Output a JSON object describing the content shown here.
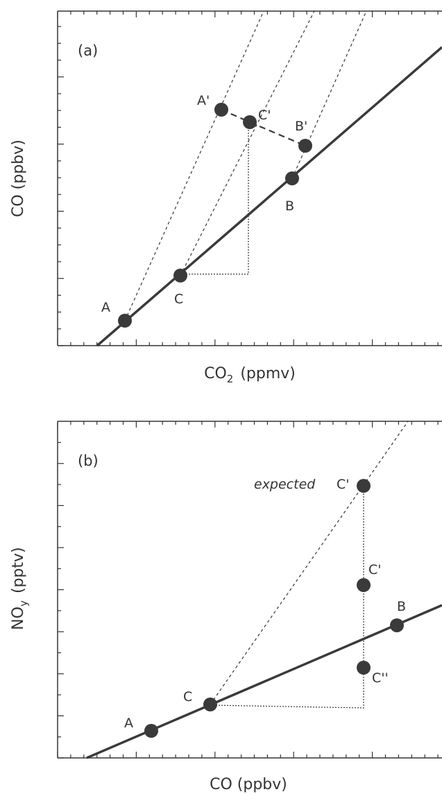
{
  "colors": {
    "ink": "#3a3a3a",
    "frame": "#333333",
    "background": "#ffffff"
  },
  "panel_a": {
    "tag": "(a)",
    "xlabel_main": "CO",
    "xlabel_sub": "2",
    "xlabel_unit": "(ppmv)",
    "ylabel": "CO (ppbv)",
    "points": {
      "A": "A",
      "A_prime": "A'",
      "B": "B",
      "B_prime": "B'",
      "C": "C",
      "C_prime": "C'"
    }
  },
  "panel_b": {
    "tag": "(b)",
    "xlabel": "CO (ppbv)",
    "ylabel_main": "NO",
    "ylabel_sub": "y",
    "ylabel_unit": "(pptv)",
    "expected": "expected",
    "points": {
      "A": "A",
      "B": "B",
      "C": "C",
      "C_prime_expected": "C'",
      "C_prime": "C'",
      "C_double_prime": "C''"
    }
  }
}
